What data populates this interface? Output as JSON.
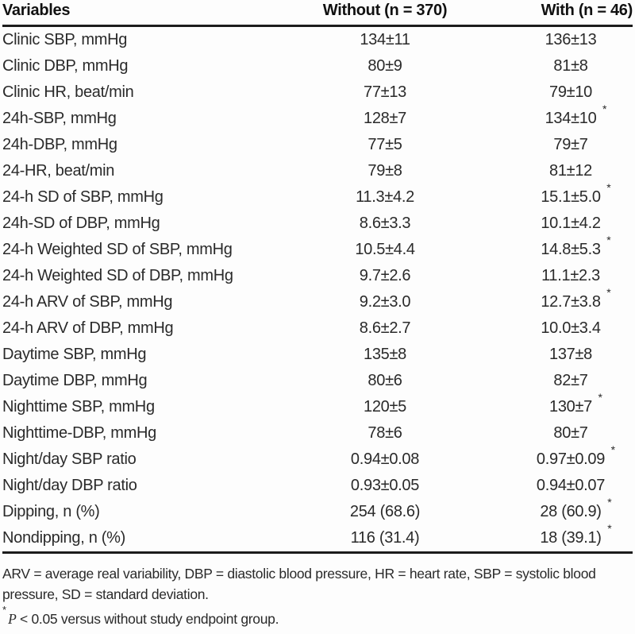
{
  "header": {
    "columns": [
      {
        "label": "Variables"
      },
      {
        "label": "Without (n = 370)"
      },
      {
        "label": "With (n = 46)"
      }
    ]
  },
  "rows": [
    {
      "variable": "Clinic SBP, mmHg",
      "without": "134±11",
      "with": "136±13",
      "without_star": false,
      "with_star": false
    },
    {
      "variable": "Clinic DBP, mmHg",
      "without": "80±9",
      "with": "81±8",
      "without_star": false,
      "with_star": false
    },
    {
      "variable": "Clinic HR, beat/min",
      "without": "77±13",
      "with": "79±10",
      "without_star": false,
      "with_star": false
    },
    {
      "variable": "24h-SBP, mmHg",
      "without": "128±7",
      "with": "134±10",
      "without_star": false,
      "with_star": true
    },
    {
      "variable": "24h-DBP, mmHg",
      "without": "77±5",
      "with": "79±7",
      "without_star": false,
      "with_star": false
    },
    {
      "variable": "24-HR, beat/min",
      "without": "79±8",
      "with": "81±12",
      "without_star": false,
      "with_star": false
    },
    {
      "variable": "24-h SD of SBP, mmHg",
      "without": "11.3±4.2",
      "with": "15.1±5.0",
      "without_star": false,
      "with_star": true
    },
    {
      "variable": "24h-SD of DBP, mmHg",
      "without": "8.6±3.3",
      "with": "10.1±4.2",
      "without_star": false,
      "with_star": false
    },
    {
      "variable": "24-h Weighted SD of SBP, mmHg",
      "without": "10.5±4.4",
      "with": "14.8±5.3",
      "without_star": false,
      "with_star": true
    },
    {
      "variable": "24-h Weighted SD of DBP, mmHg",
      "without": "9.7±2.6",
      "with": "11.1±2.3",
      "without_star": false,
      "with_star": false
    },
    {
      "variable": "24-h ARV of SBP, mmHg",
      "without": "9.2±3.0",
      "with": "12.7±3.8",
      "without_star": false,
      "with_star": true
    },
    {
      "variable": "24-h ARV of DBP, mmHg",
      "without": "8.6±2.7",
      "with": "10.0±3.4",
      "without_star": false,
      "with_star": false
    },
    {
      "variable": "Daytime SBP, mmHg",
      "without": "135±8",
      "with": "137±8",
      "without_star": false,
      "with_star": false
    },
    {
      "variable": "Daytime DBP, mmHg",
      "without": "80±6",
      "with": "82±7",
      "without_star": false,
      "with_star": false
    },
    {
      "variable": "Nighttime SBP, mmHg",
      "without": "120±5",
      "with": "130±7",
      "without_star": false,
      "with_star": true
    },
    {
      "variable": "Nighttime-DBP, mmHg",
      "without": "78±6",
      "with": "80±7",
      "without_star": false,
      "with_star": false
    },
    {
      "variable": "Night/day SBP ratio",
      "without": "0.94±0.08",
      "with": "0.97±0.09",
      "without_star": false,
      "with_star": true
    },
    {
      "variable": "Night/day DBP ratio",
      "without": "0.93±0.05",
      "with": "0.94±0.07",
      "without_star": false,
      "with_star": false
    },
    {
      "variable": "Dipping, n (%)",
      "without": "254 (68.6)",
      "with": "28 (60.9)",
      "without_star": false,
      "with_star": true
    },
    {
      "variable": "Nondipping, n (%)",
      "without": "116 (31.4)",
      "with": "18 (39.1)",
      "without_star": false,
      "with_star": true
    }
  ],
  "footnotes": {
    "abbreviations": "ARV = average real variability, DBP = diastolic blood pressure, HR = heart rate, SBP = systolic blood pressure, SD = standard deviation.",
    "significance_marker": "*",
    "significance_p": "P",
    "significance_rest": " < 0.05 versus without study endpoint group."
  },
  "colors": {
    "text": "#2a2a2a",
    "rule": "#1c1c1c",
    "background": "#fdfdfd"
  }
}
